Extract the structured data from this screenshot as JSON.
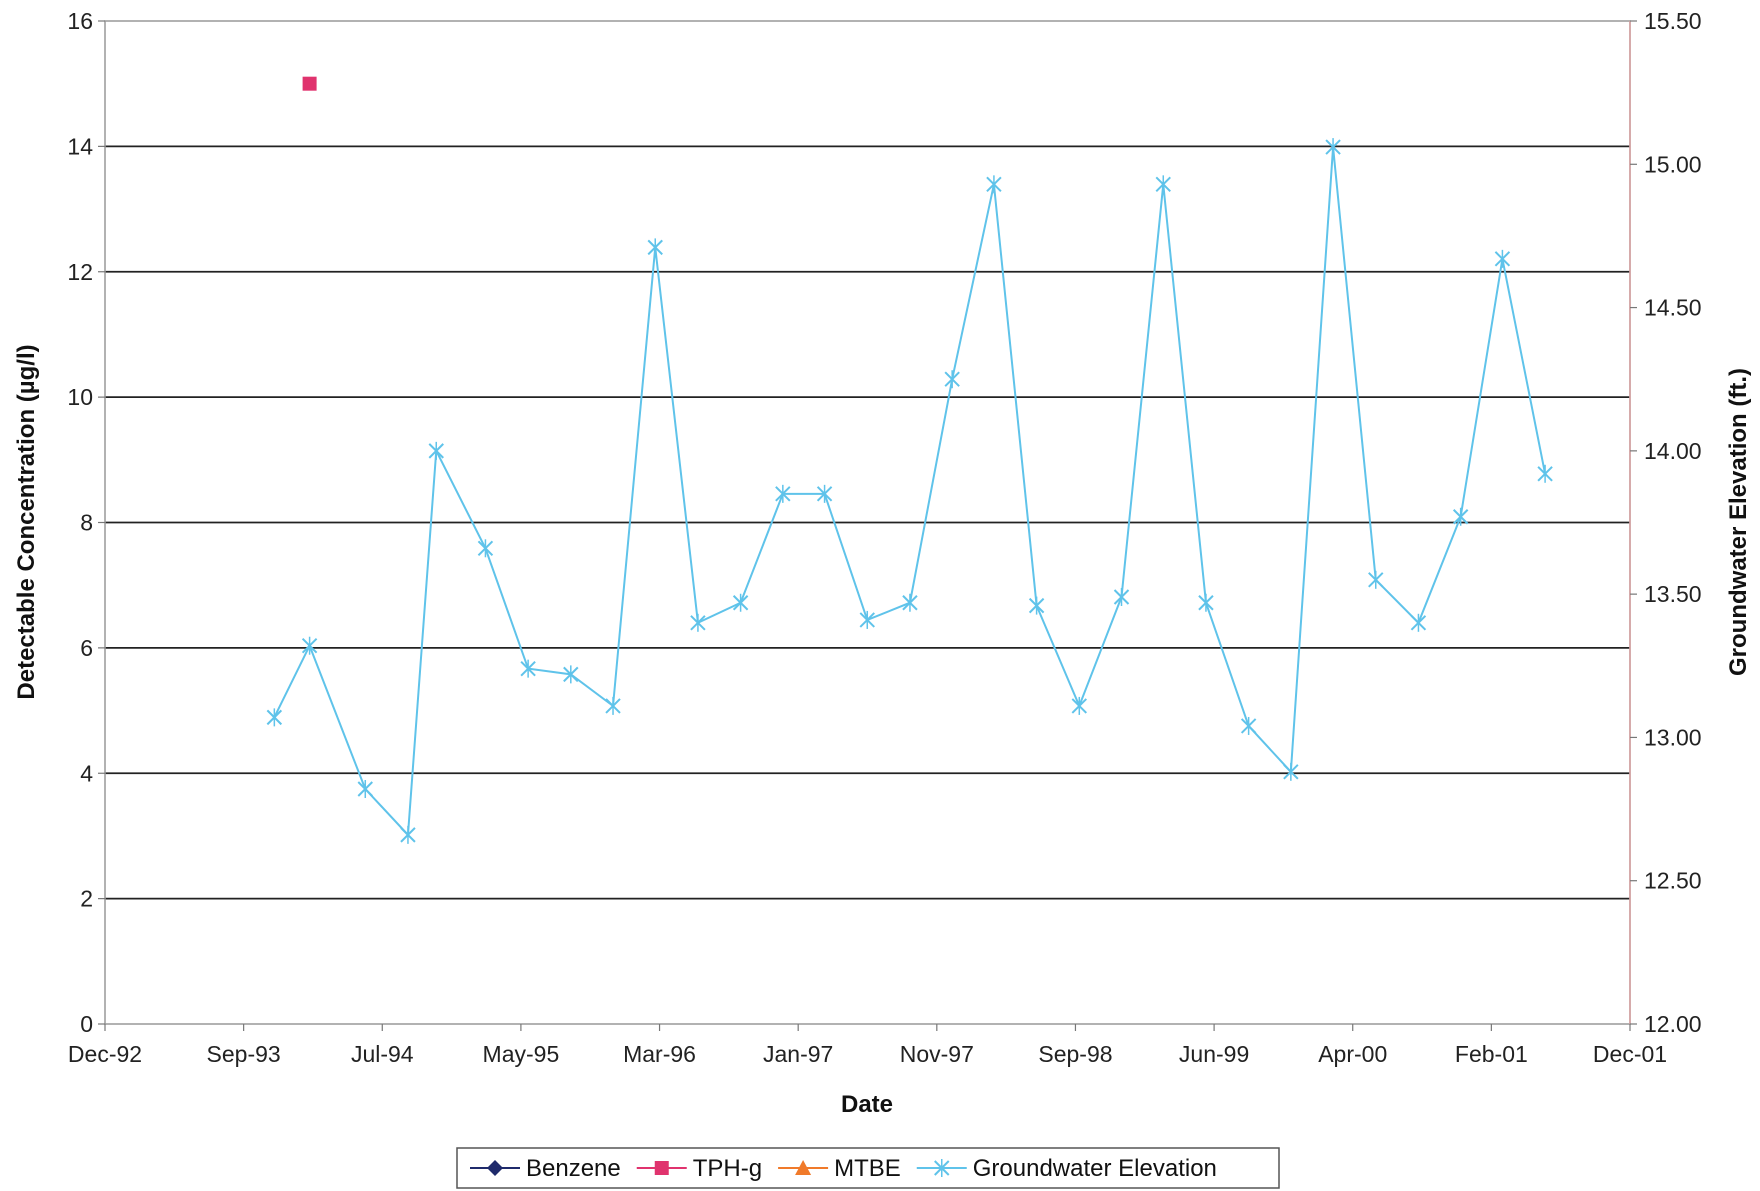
{
  "chart_data": {
    "type": "line",
    "title": "",
    "xlabel": "Date",
    "ylabel": "Detectable Concentration (µg/l)",
    "y2label": "Groundwater Elevation (ft.)",
    "x_ticks": [
      "Dec-92",
      "Sep-93",
      "Jul-94",
      "May-95",
      "Mar-96",
      "Jan-97",
      "Nov-97",
      "Sep-98",
      "Jun-99",
      "Apr-00",
      "Feb-01",
      "Dec-01"
    ],
    "ylim": [
      0,
      16
    ],
    "y_ticks": [
      "0",
      "2",
      "4",
      "6",
      "8",
      "10",
      "12",
      "14",
      "16"
    ],
    "y2lim": [
      12.0,
      15.5
    ],
    "y2_ticks": [
      "12.00",
      "12.50",
      "13.00",
      "13.50",
      "14.00",
      "14.50",
      "15.00",
      "15.50"
    ],
    "grid": "horizontal major lines",
    "legend_position": "bottom",
    "series": [
      {
        "name": "Benzene",
        "axis": "left",
        "color": "#1f2a6b",
        "marker": "diamond",
        "points": []
      },
      {
        "name": "TPH-g",
        "axis": "left",
        "color": "#e0336e",
        "marker": "square",
        "points": [
          {
            "x": "1994-02-15",
            "y": 15.0
          }
        ]
      },
      {
        "name": "MTBE",
        "axis": "left",
        "color": "#f07a2a",
        "marker": "triangle",
        "points": []
      },
      {
        "name": "Groundwater Elevation",
        "axis": "right",
        "color": "#5fc3ea",
        "marker": "x",
        "points": [
          {
            "x": "1993-12-01",
            "y": 13.07
          },
          {
            "x": "1994-02-15",
            "y": 13.32
          },
          {
            "x": "1994-06-15",
            "y": 12.82
          },
          {
            "x": "1994-09-15",
            "y": 12.66
          },
          {
            "x": "1994-11-15",
            "y": 14.0
          },
          {
            "x": "1995-03-01",
            "y": 13.66
          },
          {
            "x": "1995-06-01",
            "y": 13.24
          },
          {
            "x": "1995-09-01",
            "y": 13.22
          },
          {
            "x": "1995-12-01",
            "y": 13.11
          },
          {
            "x": "1996-03-01",
            "y": 14.71
          },
          {
            "x": "1996-06-01",
            "y": 13.4
          },
          {
            "x": "1996-09-01",
            "y": 13.47
          },
          {
            "x": "1996-12-01",
            "y": 13.85
          },
          {
            "x": "1997-03-01",
            "y": 13.85
          },
          {
            "x": "1997-06-01",
            "y": 13.41
          },
          {
            "x": "1997-09-01",
            "y": 13.47
          },
          {
            "x": "1997-12-01",
            "y": 14.25
          },
          {
            "x": "1998-03-01",
            "y": 14.93
          },
          {
            "x": "1998-06-01",
            "y": 13.46
          },
          {
            "x": "1998-09-01",
            "y": 13.11
          },
          {
            "x": "1998-12-01",
            "y": 13.49
          },
          {
            "x": "1999-03-01",
            "y": 14.93
          },
          {
            "x": "1999-06-01",
            "y": 13.47
          },
          {
            "x": "1999-09-01",
            "y": 13.04
          },
          {
            "x": "1999-12-01",
            "y": 12.88
          },
          {
            "x": "2000-03-01",
            "y": 15.06
          },
          {
            "x": "2000-06-01",
            "y": 13.55
          },
          {
            "x": "2000-09-01",
            "y": 13.4
          },
          {
            "x": "2000-12-01",
            "y": 13.77
          },
          {
            "x": "2001-03-01",
            "y": 14.67
          },
          {
            "x": "2001-06-01",
            "y": 13.92
          }
        ]
      }
    ]
  }
}
